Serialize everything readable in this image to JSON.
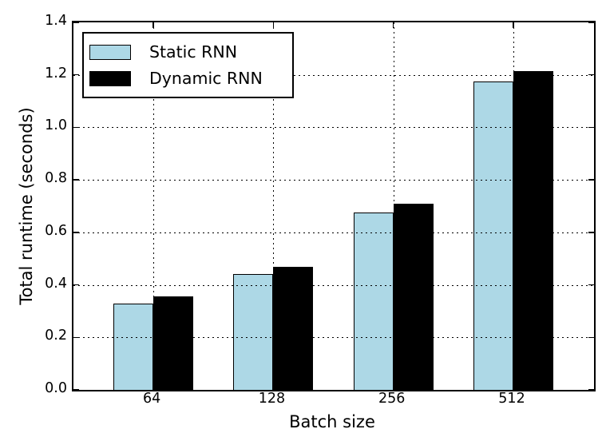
{
  "figure": {
    "background": "#ffffff"
  },
  "chart_data": {
    "type": "bar",
    "title": "",
    "xlabel": "Batch size",
    "ylabel": "Total runtime (seconds)",
    "categories": [
      "64",
      "128",
      "256",
      "512"
    ],
    "series": [
      {
        "name": "Static RNN",
        "color": "#ADD8E6",
        "values": [
          0.33,
          0.44,
          0.675,
          1.175
        ]
      },
      {
        "name": "Dynamic RNN",
        "color": "#000000",
        "values": [
          0.355,
          0.47,
          0.71,
          1.215
        ]
      }
    ],
    "ylim": [
      0.0,
      1.4
    ],
    "yticks": [
      0.0,
      0.2,
      0.4,
      0.6,
      0.8,
      1.0,
      1.2,
      1.4
    ],
    "ytick_labels": [
      "0.0",
      "0.2",
      "0.4",
      "0.6",
      "0.8",
      "1.0",
      "1.2",
      "1.4"
    ],
    "grid": true,
    "grid_style": "dotted",
    "grid_color": "#000000",
    "legend_position": "upper-left",
    "bar_edge_color": "#000000"
  }
}
